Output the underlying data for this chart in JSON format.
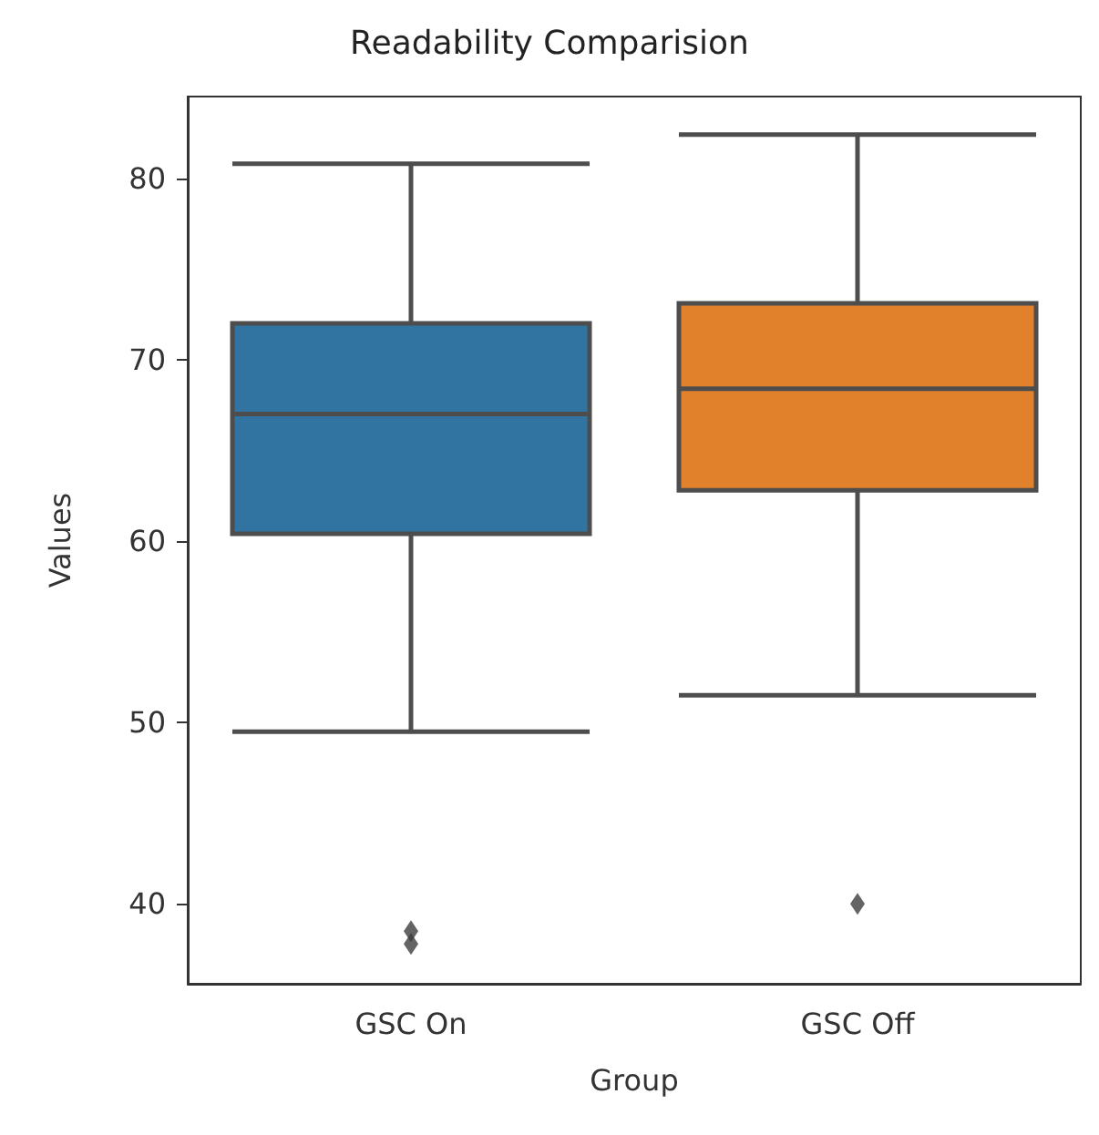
{
  "chart_data": {
    "type": "box",
    "title": "Readability Comparision",
    "xlabel": "Group",
    "ylabel": "Values",
    "categories": [
      "GSC On",
      "GSC Off"
    ],
    "colors": [
      "#3274a1",
      "#e1812c"
    ],
    "boxes": [
      {
        "low": 49.5,
        "q1": 60.4,
        "median": 67.0,
        "q3": 72.0,
        "high": 80.8,
        "outliers": [
          38.5,
          37.8
        ]
      },
      {
        "low": 51.5,
        "q1": 62.8,
        "median": 68.4,
        "q3": 73.1,
        "high": 82.4,
        "outliers": [
          40.0
        ]
      }
    ],
    "ylim": [
      35.6,
      84.5
    ],
    "yticks": [
      40,
      50,
      60,
      70,
      80
    ],
    "marker": "diamond"
  }
}
